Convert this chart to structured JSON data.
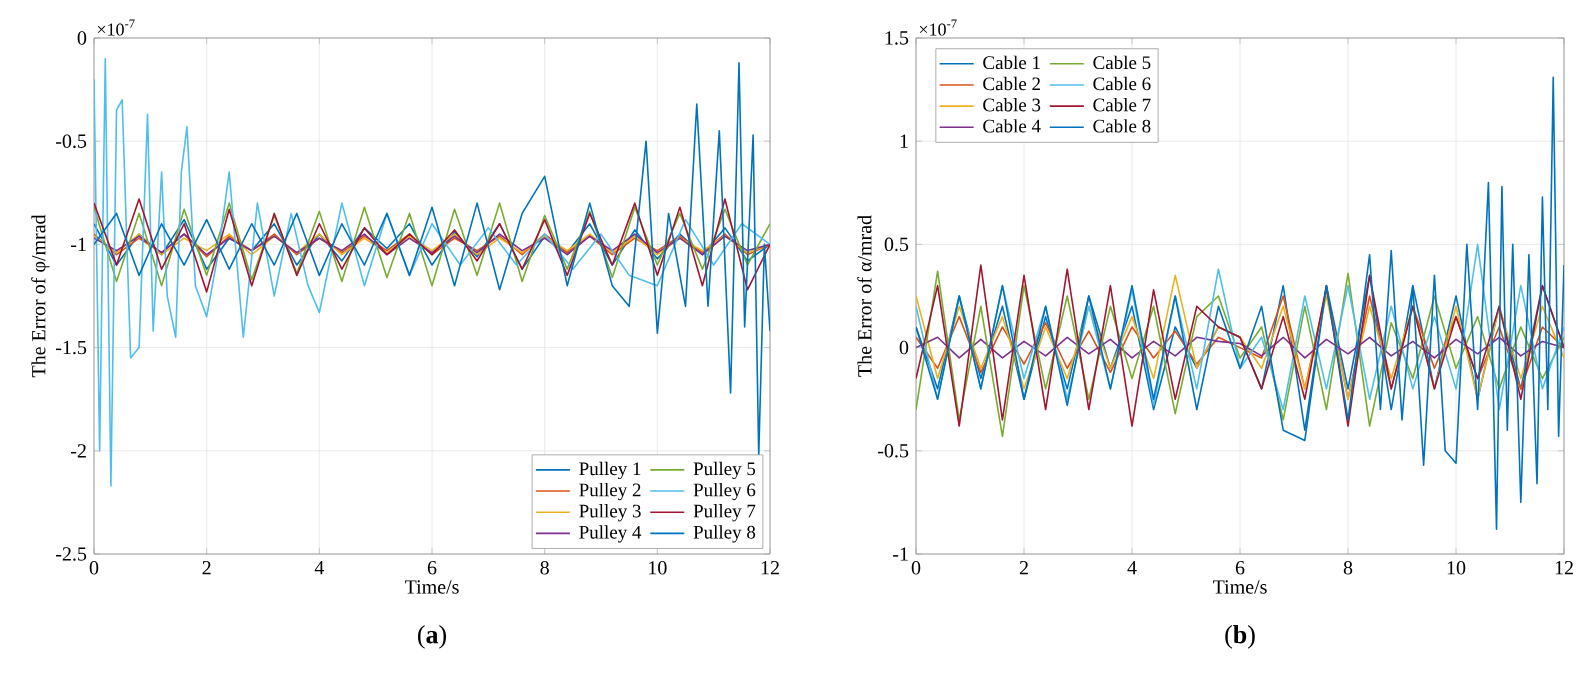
{
  "chart_data": [
    {
      "type": "line",
      "title": "(**a**)",
      "xlabel": "Time/s",
      "ylabel": "The Error of φ/mrad",
      "annotations": [
        "×10$^{-7}$"
      ],
      "xlim": [
        0,
        12
      ],
      "xticks": [
        0,
        2,
        4,
        6,
        8,
        10,
        12
      ],
      "ylim": [
        -2.5,
        0
      ],
      "yticks": [
        -2.5,
        -2,
        -1.5,
        -1,
        -0.5,
        0
      ],
      "grid": true,
      "legend": "bottom right",
      "x": [
        0,
        0.4,
        0.8,
        1.2,
        1.6,
        2.0,
        2.4,
        2.8,
        3.2,
        3.6,
        4.0,
        4.4,
        4.8,
        5.2,
        5.6,
        6.0,
        6.4,
        6.8,
        7.2,
        7.6,
        8.0,
        8.4,
        8.8,
        9.2,
        9.6,
        10.0,
        10.4,
        10.8,
        11.2,
        11.6,
        12.0
      ],
      "series": [
        {
          "name": "Pulley 1",
          "color": "#0072bd",
          "values": [
            -0.9,
            -1.1,
            -0.95,
            -1.05,
            -0.88,
            -1.12,
            -0.97,
            -1.03,
            -0.9,
            -1.1,
            -0.95,
            -1.08,
            -0.92,
            -1.02,
            -0.9,
            -1.1,
            -0.94,
            -1.06,
            -0.9,
            -1.12,
            -0.96,
            -1.04,
            -0.9,
            -1.1,
            -0.93,
            -1.07,
            -0.95,
            -1.05,
            -0.92,
            -1.08,
            -1.0
          ]
        },
        {
          "name": "Pulley 2",
          "color": "#d95319",
          "values": [
            -0.95,
            -1.05,
            -0.97,
            -1.04,
            -0.95,
            -1.06,
            -0.96,
            -1.03,
            -0.95,
            -1.05,
            -0.97,
            -1.04,
            -0.96,
            -1.03,
            -0.95,
            -1.05,
            -0.97,
            -1.03,
            -0.96,
            -1.05,
            -0.95,
            -1.04,
            -0.96,
            -1.05,
            -0.97,
            -1.03,
            -0.96,
            -1.04,
            -0.95,
            -1.05,
            -1.0
          ]
        },
        {
          "name": "Pulley 3",
          "color": "#edb120",
          "values": [
            -0.96,
            -1.04,
            -0.95,
            -1.05,
            -0.97,
            -1.03,
            -0.95,
            -1.05,
            -0.96,
            -1.04,
            -0.95,
            -1.05,
            -0.97,
            -1.04,
            -0.96,
            -1.03,
            -0.95,
            -1.05,
            -0.97,
            -1.04,
            -0.96,
            -1.03,
            -0.95,
            -1.04,
            -0.96,
            -1.05,
            -0.97,
            -1.03,
            -0.96,
            -1.04,
            -1.0
          ]
        },
        {
          "name": "Pulley 4",
          "color": "#7e2f8e",
          "values": [
            -0.97,
            -1.03,
            -0.96,
            -1.04,
            -0.95,
            -1.05,
            -0.97,
            -1.03,
            -0.96,
            -1.04,
            -0.97,
            -1.03,
            -0.95,
            -1.05,
            -0.97,
            -1.04,
            -0.96,
            -1.04,
            -0.95,
            -1.03,
            -0.97,
            -1.05,
            -0.96,
            -1.03,
            -0.95,
            -1.04,
            -0.97,
            -1.05,
            -0.96,
            -1.03,
            -1.0
          ]
        },
        {
          "name": "Pulley 5",
          "color": "#77ac30",
          "values": [
            -0.82,
            -1.18,
            -0.85,
            -1.2,
            -0.83,
            -1.15,
            -0.8,
            -1.17,
            -0.86,
            -1.14,
            -0.84,
            -1.18,
            -0.82,
            -1.16,
            -0.85,
            -1.2,
            -0.83,
            -1.15,
            -0.8,
            -1.18,
            -0.86,
            -1.12,
            -0.84,
            -1.16,
            -0.82,
            -1.1,
            -0.85,
            -1.12,
            -0.83,
            -1.1,
            -0.9
          ]
        },
        {
          "name": "Pulley 6",
          "color": "#4dbeee",
          "x": [
            0,
            0.1,
            0.2,
            0.3,
            0.4,
            0.5,
            0.65,
            0.8,
            0.95,
            1.05,
            1.2,
            1.3,
            1.45,
            1.55,
            1.65,
            1.8,
            2.0,
            2.2,
            2.4,
            2.65,
            2.9,
            3.2,
            3.5,
            3.8,
            4.0,
            4.4,
            4.8,
            5.2,
            5.6,
            6.0,
            6.5,
            7.0,
            7.5,
            8.0,
            8.5,
            9.0,
            9.5,
            10.0,
            10.5,
            11.0,
            11.5,
            12.0
          ],
          "values": [
            -0.2,
            -2.0,
            -0.1,
            -2.17,
            -0.35,
            -0.3,
            -1.55,
            -1.5,
            -0.37,
            -1.42,
            -0.65,
            -1.25,
            -1.45,
            -0.65,
            -0.43,
            -1.2,
            -1.35,
            -1.05,
            -0.65,
            -1.45,
            -0.8,
            -1.25,
            -0.85,
            -1.2,
            -1.33,
            -0.8,
            -1.2,
            -0.85,
            -1.15,
            -0.9,
            -1.1,
            -0.92,
            -1.1,
            -0.95,
            -1.12,
            -0.95,
            -1.15,
            -1.2,
            -0.88,
            -1.1,
            -0.9,
            -1.0
          ]
        },
        {
          "name": "Pulley 7",
          "color": "#a2142f",
          "values": [
            -0.8,
            -1.1,
            -0.78,
            -1.12,
            -0.9,
            -1.23,
            -0.83,
            -1.2,
            -0.85,
            -1.15,
            -0.9,
            -1.12,
            -0.92,
            -1.05,
            -0.95,
            -1.05,
            -0.93,
            -1.08,
            -0.9,
            -1.12,
            -0.88,
            -1.15,
            -0.85,
            -1.1,
            -0.8,
            -1.15,
            -0.82,
            -1.2,
            -0.78,
            -1.22,
            -1.0
          ]
        },
        {
          "name": "Pulley 8",
          "color": "#0072bd",
          "x": [
            0,
            0.4,
            0.8,
            1.2,
            1.6,
            2.0,
            2.4,
            2.8,
            3.2,
            3.6,
            4.0,
            4.4,
            4.8,
            5.2,
            5.6,
            6.0,
            6.4,
            6.8,
            7.2,
            7.6,
            8.0,
            8.4,
            8.8,
            9.2,
            9.5,
            9.8,
            10.0,
            10.2,
            10.5,
            10.7,
            10.9,
            11.1,
            11.3,
            11.45,
            11.55,
            11.7,
            11.8,
            11.9,
            12.0
          ],
          "values": [
            -1.0,
            -0.85,
            -1.15,
            -0.9,
            -1.1,
            -0.88,
            -1.12,
            -0.9,
            -1.1,
            -0.85,
            -1.15,
            -0.9,
            -1.1,
            -0.85,
            -1.15,
            -0.82,
            -1.2,
            -0.8,
            -1.22,
            -0.85,
            -0.67,
            -1.2,
            -0.8,
            -1.2,
            -1.3,
            -0.5,
            -1.43,
            -0.85,
            -1.3,
            -0.32,
            -1.3,
            -0.45,
            -1.72,
            -0.12,
            -1.4,
            -0.47,
            -2.02,
            -1.0,
            -1.42
          ]
        }
      ]
    },
    {
      "type": "line",
      "title": "(**b**)",
      "xlabel": "Time/s",
      "ylabel": "The Error of α/mrad",
      "annotations": [
        "×10$^{-7}$"
      ],
      "xlim": [
        0,
        12
      ],
      "xticks": [
        0,
        2,
        4,
        6,
        8,
        10,
        12
      ],
      "ylim": [
        -1,
        1.5
      ],
      "yticks": [
        -1,
        -0.5,
        0,
        0.5,
        1,
        1.5
      ],
      "grid": true,
      "legend": "top left",
      "x": [
        0,
        0.4,
        0.8,
        1.2,
        1.6,
        2.0,
        2.4,
        2.8,
        3.2,
        3.6,
        4.0,
        4.4,
        4.8,
        5.2,
        5.6,
        6.0,
        6.4,
        6.8,
        7.2,
        7.6,
        8.0,
        8.4,
        8.8,
        9.2,
        9.6,
        10.0,
        10.4,
        10.8,
        11.2,
        11.6,
        12.0
      ],
      "series": [
        {
          "name": "Cable 1",
          "color": "#0072bd",
          "values": [
            0.1,
            -0.2,
            0.25,
            -0.15,
            0.2,
            -0.25,
            0.15,
            -0.2,
            0.25,
            -0.1,
            0.2,
            -0.3,
            0.1,
            -0.1,
            0.1,
            0.05,
            -0.2,
            0.3,
            -0.4,
            0.3,
            -0.2,
            0.35,
            -0.3,
            0.3,
            -0.2,
            0.25,
            -0.25,
            0.2,
            -0.2,
            0.3,
            0.0
          ]
        },
        {
          "name": "Cable 2",
          "color": "#d95319",
          "values": [
            0.05,
            -0.1,
            0.15,
            -0.12,
            0.1,
            -0.08,
            0.12,
            -0.1,
            0.08,
            -0.12,
            0.1,
            -0.05,
            0.08,
            -0.08,
            0.05,
            0.0,
            -0.05,
            0.25,
            -0.2,
            0.28,
            -0.25,
            0.25,
            -0.2,
            0.2,
            -0.1,
            0.15,
            -0.15,
            0.1,
            -0.2,
            0.1,
            0.0
          ]
        },
        {
          "name": "Cable 3",
          "color": "#edb120",
          "values": [
            0.25,
            -0.15,
            0.2,
            -0.1,
            0.15,
            -0.2,
            0.1,
            -0.15,
            0.2,
            -0.1,
            0.15,
            -0.15,
            0.35,
            -0.1,
            0.1,
            0.05,
            -0.1,
            0.2,
            -0.2,
            0.25,
            -0.25,
            0.2,
            -0.15,
            0.2,
            -0.2,
            0.2,
            -0.25,
            0.2,
            -0.15,
            0.2,
            -0.05
          ]
        },
        {
          "name": "Cable 4",
          "color": "#7e2f8e",
          "values": [
            0.0,
            0.05,
            -0.05,
            0.04,
            -0.05,
            0.03,
            -0.04,
            0.05,
            -0.03,
            0.04,
            -0.05,
            0.03,
            -0.04,
            0.05,
            0.03,
            0.02,
            -0.04,
            0.05,
            -0.05,
            0.04,
            -0.03,
            0.05,
            -0.04,
            0.03,
            -0.05,
            0.04,
            -0.03,
            0.05,
            -0.04,
            0.03,
            0.0
          ]
        },
        {
          "name": "Cable 5",
          "color": "#77ac30",
          "values": [
            -0.3,
            0.37,
            -0.35,
            0.2,
            -0.43,
            0.3,
            -0.2,
            0.25,
            -0.25,
            0.2,
            -0.15,
            0.2,
            -0.32,
            0.15,
            0.25,
            -0.05,
            0.1,
            -0.35,
            0.2,
            -0.3,
            0.36,
            -0.38,
            0.12,
            -0.15,
            0.25,
            -0.1,
            0.15,
            -0.2,
            0.1,
            -0.15,
            0.05
          ]
        },
        {
          "name": "Cable 6",
          "color": "#4dbeee",
          "values": [
            0.2,
            -0.25,
            0.25,
            -0.2,
            0.3,
            -0.15,
            0.2,
            -0.25,
            0.2,
            -0.2,
            0.28,
            -0.28,
            0.25,
            -0.2,
            0.38,
            -0.1,
            0.05,
            -0.3,
            0.25,
            -0.2,
            0.3,
            -0.25,
            0.2,
            -0.2,
            0.15,
            -0.2,
            0.5,
            -0.3,
            0.3,
            -0.2,
            0.1
          ]
        },
        {
          "name": "Cable 7",
          "color": "#a2142f",
          "values": [
            -0.15,
            0.3,
            -0.38,
            0.4,
            -0.35,
            0.35,
            -0.3,
            0.38,
            -0.3,
            0.3,
            -0.38,
            0.28,
            -0.25,
            0.2,
            0.1,
            0.05,
            -0.2,
            0.15,
            -0.25,
            0.3,
            -0.38,
            0.35,
            -0.2,
            0.2,
            -0.2,
            0.15,
            -0.15,
            0.2,
            -0.25,
            0.3,
            0.0
          ]
        },
        {
          "name": "Cable 8",
          "color": "#0072bd",
          "x": [
            0,
            0.4,
            0.8,
            1.2,
            1.6,
            2.0,
            2.4,
            2.8,
            3.2,
            3.6,
            4.0,
            4.4,
            4.8,
            5.2,
            5.6,
            6.0,
            6.4,
            6.8,
            7.2,
            7.6,
            8.0,
            8.4,
            8.6,
            8.8,
            9.0,
            9.2,
            9.4,
            9.6,
            9.8,
            10.0,
            10.2,
            10.4,
            10.6,
            10.75,
            10.85,
            10.95,
            11.05,
            11.2,
            11.35,
            11.5,
            11.6,
            11.7,
            11.8,
            11.9,
            12.0
          ],
          "values": [
            0.1,
            -0.25,
            0.25,
            -0.2,
            0.3,
            -0.25,
            0.2,
            -0.28,
            0.25,
            -0.2,
            0.3,
            -0.25,
            0.25,
            -0.3,
            0.2,
            -0.1,
            0.2,
            -0.4,
            -0.45,
            0.3,
            -0.35,
            0.45,
            -0.3,
            0.47,
            -0.35,
            0.3,
            -0.57,
            0.35,
            -0.5,
            -0.56,
            0.5,
            -0.3,
            0.8,
            -0.88,
            0.78,
            -0.4,
            0.5,
            -0.75,
            0.45,
            -0.66,
            0.73,
            -0.3,
            1.31,
            -0.43,
            0.4
          ]
        }
      ]
    }
  ]
}
